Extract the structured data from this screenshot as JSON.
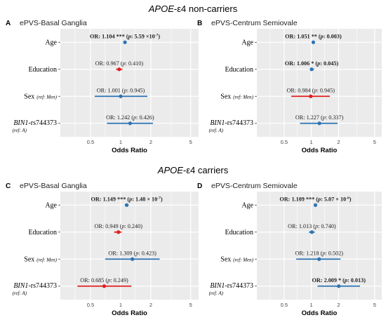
{
  "figure": {
    "group_top_prefix": "APOE",
    "group_top_suffix": "-ε4 non-carriers",
    "group_bottom_prefix": "APOE",
    "group_bottom_suffix": "-ε4 carriers"
  },
  "colors": {
    "positive": "#2e75b6",
    "negative": "#e02020",
    "panel_bg": "#ebebeb",
    "grid": "#ffffff"
  },
  "chart_data": [
    {
      "type": "forest",
      "panel_letter": "A",
      "title": "ePVS-Basal Ganglia",
      "xlabel": "Odds Ratio",
      "scale": "log",
      "xlim": [
        0.25,
        6
      ],
      "xticks": [
        "0.5",
        "1",
        "2",
        "5"
      ],
      "rows": [
        {
          "label": "Age",
          "or": 1.104,
          "low": 1.09,
          "high": 1.12,
          "text": "1.104 ***",
          "p": "5.59 ×10",
          "p_exp": "-7",
          "bold": true,
          "color": "positive"
        },
        {
          "label": "Education",
          "or": 0.967,
          "low": 0.9,
          "high": 1.04,
          "text": "0.967",
          "p": "0.410",
          "p_exp": "",
          "bold": false,
          "color": "negative"
        },
        {
          "label": "Sex",
          "ref": "(ref: Men)",
          "or": 1.001,
          "low": 0.55,
          "high": 1.85,
          "text": "1.001",
          "p": "0.945",
          "p_exp": "",
          "bold": false,
          "color": "positive"
        },
        {
          "label": "BIN1",
          "label_suffix": "-rs744373",
          "ref": "(ref: A)",
          "or": 1.242,
          "low": 0.73,
          "high": 2.1,
          "text": "1.242",
          "p": "0.426",
          "p_exp": "",
          "bold": false,
          "color": "positive"
        }
      ]
    },
    {
      "type": "forest",
      "panel_letter": "B",
      "title": "ePVS-Centrum Semiovale",
      "xlabel": "Odds Ratio",
      "scale": "log",
      "xlim": [
        0.25,
        6
      ],
      "xticks": [
        "0.5",
        "1",
        "2",
        "5"
      ],
      "rows": [
        {
          "label": "Age",
          "or": 1.051,
          "low": 1.02,
          "high": 1.08,
          "text": "1.051 **",
          "p": "0.003",
          "p_exp": "",
          "bold": true,
          "color": "positive"
        },
        {
          "label": "Education",
          "or": 1.006,
          "low": 0.97,
          "high": 1.07,
          "text": "1.006 *",
          "p": "0.045",
          "p_exp": "",
          "bold": true,
          "color": "positive"
        },
        {
          "label": "Sex",
          "ref": "(ref: Men)",
          "or": 0.984,
          "low": 0.6,
          "high": 1.6,
          "text": "0.984",
          "p": "0.945",
          "p_exp": "",
          "bold": false,
          "color": "negative"
        },
        {
          "label": "BIN1",
          "label_suffix": "-rs744373",
          "ref": "(ref: A)",
          "or": 1.227,
          "low": 0.75,
          "high": 1.95,
          "text": "1.227",
          "p": "0.337",
          "p_exp": "",
          "bold": false,
          "color": "positive"
        }
      ]
    },
    {
      "type": "forest",
      "panel_letter": "C",
      "title": "ePVS-Basal Ganglia",
      "xlabel": "Odds Ratio",
      "scale": "log",
      "xlim": [
        0.25,
        6
      ],
      "xticks": [
        "0.5",
        "1",
        "2",
        "5"
      ],
      "rows": [
        {
          "label": "Age",
          "or": 1.149,
          "low": 1.1,
          "high": 1.2,
          "text": "1.149 ***",
          "p": "1.48 × 10",
          "p_exp": "-7",
          "bold": true,
          "color": "positive"
        },
        {
          "label": "Education",
          "or": 0.949,
          "low": 0.86,
          "high": 1.02,
          "text": "0.949",
          "p": "0.240",
          "p_exp": "",
          "bold": false,
          "color": "negative"
        },
        {
          "label": "Sex",
          "ref": "(ref: Men)",
          "or": 1.309,
          "low": 0.7,
          "high": 2.45,
          "text": "1.309",
          "p": "0.423",
          "p_exp": "",
          "bold": false,
          "color": "positive"
        },
        {
          "label": "BIN1",
          "label_suffix": "-rs744373",
          "ref": "(ref: A)",
          "or": 0.685,
          "low": 0.37,
          "high": 1.28,
          "text": "0.685",
          "p": "0.249",
          "p_exp": "",
          "bold": false,
          "color": "negative"
        }
      ]
    },
    {
      "type": "forest",
      "panel_letter": "D",
      "title": "ePVS-Centrum Semiovale",
      "xlabel": "Odds Ratio",
      "scale": "log",
      "xlim": [
        0.25,
        6
      ],
      "xticks": [
        "0.5",
        "1",
        "2",
        "5"
      ],
      "rows": [
        {
          "label": "Age",
          "or": 1.109,
          "low": 1.06,
          "high": 1.16,
          "text": "1.109 ***",
          "p": "5.07 × 10",
          "p_exp": "-6",
          "bold": true,
          "color": "positive"
        },
        {
          "label": "Education",
          "or": 1.013,
          "low": 0.94,
          "high": 1.09,
          "text": "1.013",
          "p": "0.740",
          "p_exp": "",
          "bold": false,
          "color": "positive"
        },
        {
          "label": "Sex",
          "ref": "(ref: Men)",
          "or": 1.218,
          "low": 0.68,
          "high": 2.1,
          "text": "1.218",
          "p": "0.502",
          "p_exp": "",
          "bold": false,
          "color": "positive"
        },
        {
          "label": "BIN1",
          "label_suffix": "-rs744373",
          "ref": "(ref: A)",
          "or": 2.009,
          "low": 1.17,
          "high": 3.45,
          "text": "2.009 *",
          "p": "0.013",
          "p_exp": "",
          "bold": true,
          "color": "positive"
        }
      ]
    }
  ]
}
